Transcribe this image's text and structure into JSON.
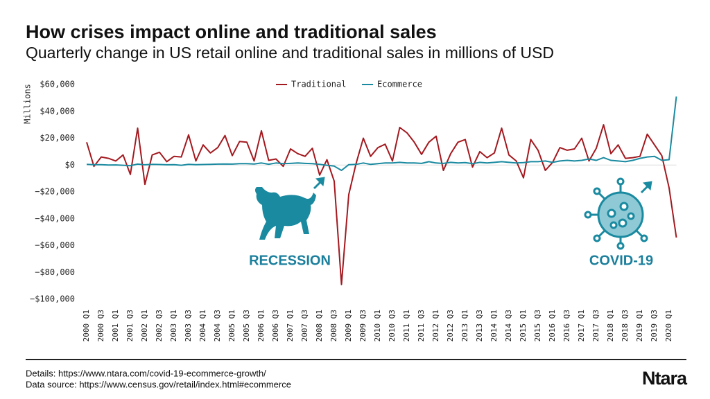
{
  "chart_data": {
    "type": "line",
    "title": "How crises impact online and traditional sales",
    "subtitle": "Quarterly change in US retail online and traditional sales in millions of USD",
    "ylabel": "Millions",
    "categories": [
      "2000 Q1",
      null,
      "2000 Q3",
      null,
      "2001 Q1",
      null,
      "2001 Q3",
      null,
      "2002 Q1",
      null,
      "2002 Q3",
      null,
      "2003 Q1",
      null,
      "2003 Q3",
      null,
      "2004 Q1",
      null,
      "2004 Q3",
      null,
      "2005 Q1",
      null,
      "2005 Q3",
      null,
      "2006 Q1",
      null,
      "2006 Q3",
      null,
      "2007 Q1",
      null,
      "2007 Q3",
      null,
      "2008 Q1",
      null,
      "2008 Q3",
      null,
      "2009 Q1",
      null,
      "2009 Q3",
      null,
      "2010 Q1",
      null,
      "2010 Q3",
      null,
      "2011 Q1",
      null,
      "2011 Q3",
      null,
      "2012 Q1",
      null,
      "2012 Q3",
      null,
      "2013 Q1",
      null,
      "2013 Q3",
      null,
      "2014 Q1",
      null,
      "2014 Q3",
      null,
      "2015 Q1",
      null,
      "2015 Q3",
      null,
      "2016 Q1",
      null,
      "2016 Q3",
      null,
      "2017 Q1",
      null,
      "2017 Q3",
      null,
      "2018 Q1",
      null,
      "2018 Q3",
      null,
      "2019 Q1",
      null,
      "2019 Q3",
      null,
      "2020 Q1",
      null
    ],
    "series": [
      {
        "name": "Traditional",
        "color": "#a3191f",
        "values": [
          17000,
          -1000,
          6000,
          5000,
          3000,
          7500,
          -7000,
          27500,
          -14500,
          7500,
          9500,
          2500,
          6500,
          6000,
          22500,
          3000,
          15000,
          9000,
          13000,
          22000,
          7000,
          17500,
          17000,
          3000,
          25500,
          3500,
          4500,
          -1000,
          12000,
          8500,
          6500,
          12500,
          -7500,
          4000,
          -12000,
          -89000,
          -22000,
          1000,
          20000,
          6500,
          13000,
          15500,
          3000,
          28000,
          24000,
          17000,
          8000,
          17000,
          21500,
          -4000,
          8500,
          17000,
          19000,
          -1500,
          10000,
          5500,
          9000,
          27500,
          7500,
          3000,
          -9500,
          19000,
          11000,
          -4000,
          2000,
          13000,
          11000,
          12000,
          20000,
          3000,
          12500,
          30000,
          8500,
          15000,
          5000,
          5500,
          6500,
          23000,
          15000,
          7000,
          -17000,
          -54000
        ]
      },
      {
        "name": "Ecommerce",
        "color": "#1a8aa0",
        "values": [
          500,
          300,
          300,
          0,
          100,
          -200,
          -500,
          700,
          200,
          500,
          400,
          200,
          300,
          -200,
          500,
          300,
          400,
          500,
          700,
          800,
          700,
          1000,
          1000,
          800,
          1500,
          600,
          1500,
          1000,
          1200,
          1500,
          1200,
          1000,
          500,
          -200,
          -800,
          -4000,
          300,
          500,
          1500,
          500,
          1000,
          1500,
          1500,
          2000,
          1500,
          1500,
          1200,
          2500,
          1500,
          1200,
          2000,
          1500,
          1800,
          1000,
          2000,
          1500,
          2000,
          2500,
          2000,
          1500,
          1800,
          2500,
          2500,
          3000,
          2000,
          3000,
          3500,
          3000,
          3500,
          4500,
          3500,
          5500,
          3500,
          3000,
          2500,
          3500,
          5000,
          6000,
          6500,
          3500,
          4000,
          51000
        ]
      }
    ],
    "ylim": [
      -100000,
      60000
    ],
    "yticks": [
      {
        "value": -100000,
        "label": "−$100,000"
      },
      {
        "value": -80000,
        "label": "−$80,000"
      },
      {
        "value": -60000,
        "label": "−$60,000"
      },
      {
        "value": -40000,
        "label": "−$40,000"
      },
      {
        "value": -20000,
        "label": "−$20,000"
      },
      {
        "value": 0,
        "label": "$0"
      },
      {
        "value": 20000,
        "label": "$20,000"
      },
      {
        "value": 40000,
        "label": "$40,000"
      },
      {
        "value": 60000,
        "label": "$60,000"
      }
    ],
    "legend": "top",
    "annotations": [
      "RECESSION",
      "COVID-19"
    ],
    "details": "Details: https://www.ntara.com/covid-19-ecommerce-growth/",
    "source": "Data source: https://www.census.gov/retail/index.html#ecommerce",
    "brand": "Ntara"
  }
}
